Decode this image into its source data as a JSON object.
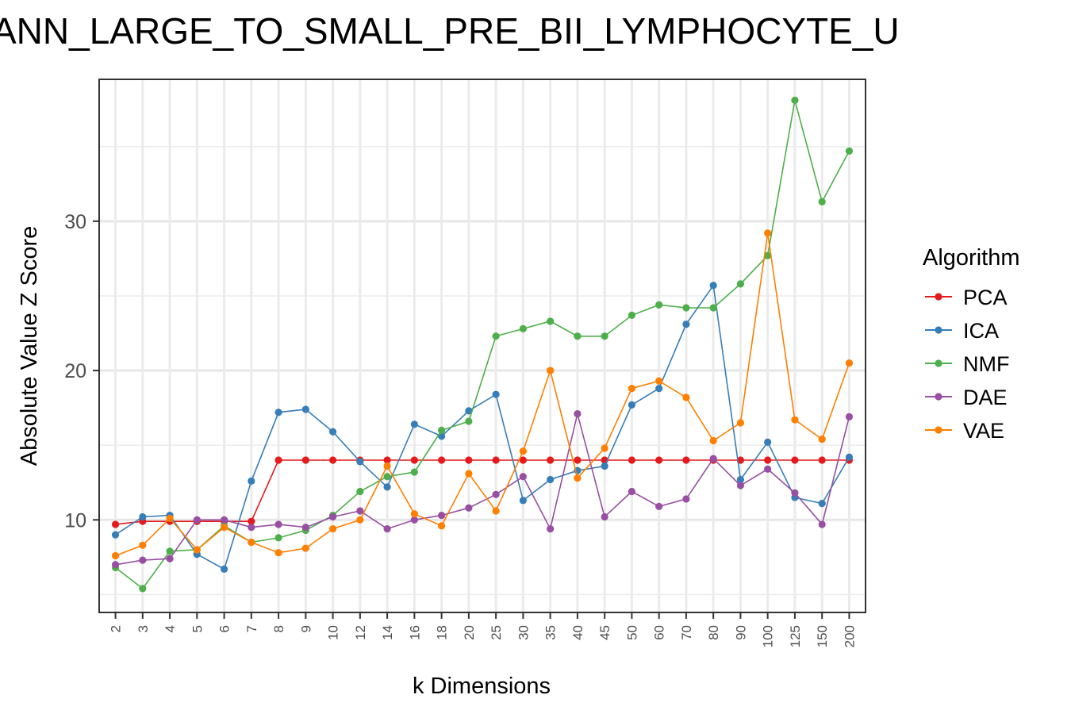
{
  "chart_data": {
    "type": "line",
    "title": "ANN_LARGE_TO_SMALL_PRE_BII_LYMPHOCYTE_U",
    "xlabel": "k Dimensions",
    "ylabel": "Absolute Value Z Score",
    "categories": [
      "2",
      "3",
      "4",
      "5",
      "6",
      "7",
      "8",
      "9",
      "10",
      "12",
      "14",
      "16",
      "18",
      "20",
      "25",
      "30",
      "35",
      "40",
      "45",
      "50",
      "60",
      "70",
      "80",
      "90",
      "100",
      "125",
      "150",
      "200"
    ],
    "y_ticks": [
      10,
      20,
      30
    ],
    "ylim": [
      3.8,
      39.5
    ],
    "grid": true,
    "legend": {
      "title": "Algorithm",
      "position": "right"
    },
    "series": [
      {
        "name": "PCA",
        "color": "#e41a1c",
        "values": [
          9.7,
          9.9,
          9.9,
          9.9,
          9.9,
          9.9,
          14.0,
          14.0,
          14.0,
          14.0,
          14.0,
          14.0,
          14.0,
          14.0,
          14.0,
          14.0,
          14.0,
          14.0,
          14.0,
          14.0,
          14.0,
          14.0,
          14.0,
          14.0,
          14.0,
          14.0,
          14.0,
          14.0
        ]
      },
      {
        "name": "ICA",
        "color": "#377eb8",
        "values": [
          9.0,
          10.2,
          10.3,
          7.7,
          6.7,
          12.6,
          17.2,
          17.4,
          15.9,
          13.9,
          12.2,
          16.4,
          15.6,
          17.3,
          18.4,
          11.3,
          12.7,
          13.3,
          13.6,
          17.7,
          18.8,
          23.1,
          25.7,
          12.7,
          15.2,
          11.5,
          11.1,
          14.2
        ]
      },
      {
        "name": "NMF",
        "color": "#4daf4a",
        "values": [
          6.8,
          5.4,
          7.9,
          8.0,
          9.6,
          8.5,
          8.8,
          9.3,
          10.3,
          11.9,
          12.9,
          13.2,
          16.0,
          16.6,
          22.3,
          22.8,
          23.3,
          22.3,
          22.3,
          23.7,
          24.4,
          24.2,
          24.2,
          25.8,
          27.7,
          38.1,
          31.3,
          34.7
        ]
      },
      {
        "name": "DAE",
        "color": "#984ea3",
        "values": [
          7.0,
          7.3,
          7.4,
          10.0,
          10.0,
          9.5,
          9.7,
          9.5,
          10.2,
          10.6,
          9.4,
          10.0,
          10.3,
          10.8,
          11.7,
          12.9,
          9.4,
          17.1,
          10.2,
          11.9,
          10.9,
          11.4,
          14.1,
          12.3,
          13.4,
          11.8,
          9.7,
          16.9
        ]
      },
      {
        "name": "VAE",
        "color": "#ff7f00",
        "values": [
          7.6,
          8.3,
          10.1,
          8.0,
          9.5,
          8.5,
          7.8,
          8.1,
          9.4,
          10.0,
          13.6,
          10.4,
          9.6,
          13.1,
          10.6,
          14.6,
          20.0,
          12.8,
          14.8,
          18.8,
          19.3,
          18.2,
          15.3,
          16.5,
          29.2,
          16.7,
          15.4,
          20.5
        ]
      }
    ]
  }
}
